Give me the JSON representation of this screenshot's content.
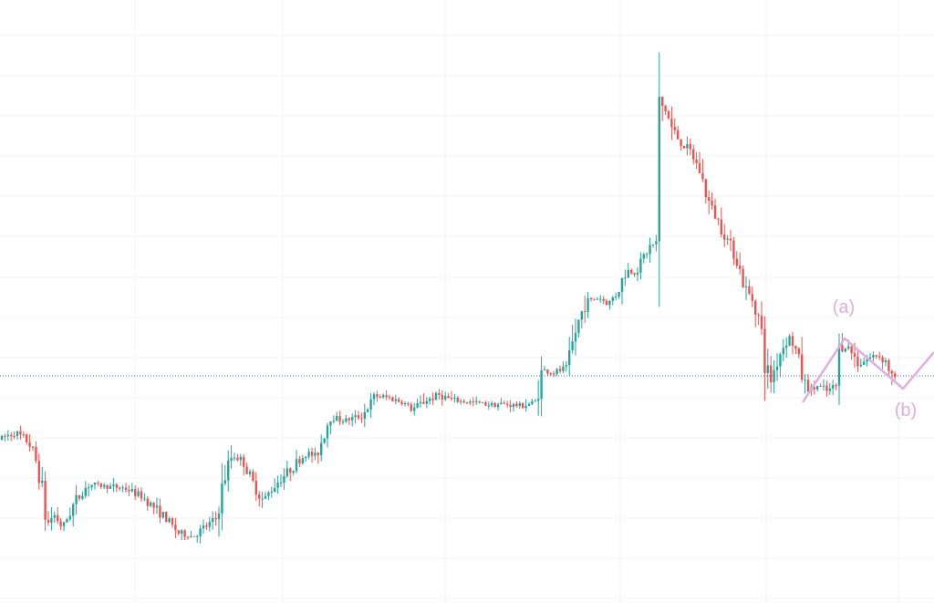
{
  "chart_data": {
    "type": "candlestick",
    "title": "",
    "xlabel": "",
    "ylabel": "",
    "ylim": [
      0,
      661
    ],
    "grid": true,
    "colors": {
      "up": "#26a69a",
      "down": "#ef5350",
      "grid": "#f0f3f7",
      "price_line": "#2f7fb0",
      "wave": "#e0aee0"
    },
    "grid_rows": [
      39,
      83,
      127,
      171,
      215,
      259,
      304,
      348,
      392,
      436,
      480,
      524,
      568,
      612,
      656
    ],
    "grid_cols": [
      148,
      310,
      488,
      680,
      840,
      985
    ],
    "last_price": 249,
    "price_path": [
      [
        0,
        179
      ],
      [
        20,
        187
      ],
      [
        35,
        176
      ],
      [
        45,
        150
      ],
      [
        55,
        85
      ],
      [
        62,
        98
      ],
      [
        72,
        83
      ],
      [
        85,
        110
      ],
      [
        100,
        130
      ],
      [
        120,
        128
      ],
      [
        140,
        126
      ],
      [
        160,
        116
      ],
      [
        180,
        98
      ],
      [
        200,
        76
      ],
      [
        215,
        73
      ],
      [
        240,
        92
      ],
      [
        250,
        140
      ],
      [
        258,
        163
      ],
      [
        270,
        155
      ],
      [
        280,
        132
      ],
      [
        292,
        112
      ],
      [
        305,
        130
      ],
      [
        320,
        145
      ],
      [
        340,
        165
      ],
      [
        350,
        160
      ],
      [
        365,
        205
      ],
      [
        380,
        200
      ],
      [
        400,
        205
      ],
      [
        415,
        227
      ],
      [
        430,
        225
      ],
      [
        445,
        220
      ],
      [
        455,
        212
      ],
      [
        470,
        222
      ],
      [
        485,
        228
      ],
      [
        500,
        222
      ],
      [
        520,
        220
      ],
      [
        540,
        218
      ],
      [
        555,
        218
      ],
      [
        575,
        216
      ],
      [
        590,
        220
      ],
      [
        598,
        255
      ],
      [
        610,
        252
      ],
      [
        625,
        258
      ],
      [
        635,
        300
      ],
      [
        645,
        330
      ],
      [
        660,
        335
      ],
      [
        670,
        328
      ],
      [
        680,
        340
      ],
      [
        690,
        365
      ],
      [
        700,
        362
      ],
      [
        715,
        390
      ],
      [
        723,
        395
      ],
      [
        727,
        545
      ],
      [
        733,
        540
      ],
      [
        740,
        520
      ],
      [
        750,
        505
      ],
      [
        760,
        495
      ],
      [
        770,
        475
      ],
      [
        780,
        440
      ],
      [
        790,
        420
      ],
      [
        800,
        400
      ],
      [
        810,
        380
      ],
      [
        820,
        345
      ],
      [
        830,
        330
      ],
      [
        837,
        305
      ],
      [
        842,
        265
      ],
      [
        848,
        243
      ],
      [
        858,
        273
      ],
      [
        868,
        293
      ],
      [
        875,
        280
      ],
      [
        885,
        240
      ],
      [
        892,
        233
      ],
      [
        900,
        238
      ],
      [
        910,
        232
      ],
      [
        920,
        238
      ],
      [
        925,
        288
      ],
      [
        935,
        278
      ],
      [
        945,
        262
      ],
      [
        955,
        268
      ],
      [
        965,
        272
      ],
      [
        975,
        265
      ],
      [
        982,
        245
      ]
    ],
    "wave_path": [
      [
        880,
        220
      ],
      [
        926,
        290
      ],
      [
        990,
        235
      ],
      [
        1024,
        275
      ]
    ],
    "annotations": [
      {
        "label": "(a)",
        "x": 925,
        "y": 318
      },
      {
        "label": "(b)",
        "x": 993,
        "y": 205
      }
    ]
  }
}
